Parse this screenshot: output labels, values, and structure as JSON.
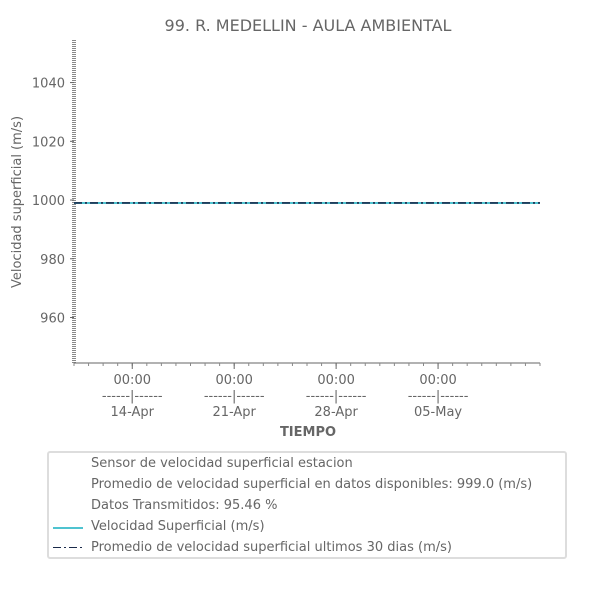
{
  "chart_data": {
    "type": "line",
    "title": "99. R. MEDELLIN - AULA AMBIENTAL",
    "xlabel": "TIEMPO",
    "ylabel": "Velocidad superficial (m/s)",
    "ylim": [
      944.5,
      1054.5
    ],
    "yticks": [
      960,
      980,
      1000,
      1020,
      1040
    ],
    "x_range_days": [
      "2024-04-10",
      "2024-05-12"
    ],
    "xticks": [
      {
        "date": "2024-04-14",
        "line1": "00:00",
        "line2": "------|------",
        "line3": "14-Apr"
      },
      {
        "date": "2024-04-21",
        "line1": "00:00",
        "line2": "------|------",
        "line3": "21-Apr"
      },
      {
        "date": "2024-04-28",
        "line1": "00:00",
        "line2": "------|------",
        "line3": "28-Apr"
      },
      {
        "date": "2024-05-05",
        "line1": "00:00",
        "line2": "------|------",
        "line3": "05-May"
      }
    ],
    "series": [
      {
        "name": "Velocidad Superficial (m/s)",
        "color": "#4fc3d0",
        "style": "solid",
        "x": [
          "2024-04-10",
          "2024-05-12"
        ],
        "values": [
          999.0,
          999.0
        ]
      },
      {
        "name": "Promedio de velocidad superficial ultimos 30 dias (m/s)",
        "color": "#1a2a4a",
        "style": "dashdot",
        "x": [
          "2024-04-10",
          "2024-05-12"
        ],
        "values": [
          999.0,
          999.0
        ]
      }
    ],
    "grid": false,
    "legend_position": "bottom"
  },
  "legend": {
    "info_lines": [
      "Sensor de velocidad superficial estacion",
      "Promedio de velocidad superficial en datos disponibles: 999.0 (m/s)",
      "Datos Transmitidos: 95.46 %"
    ]
  },
  "colors": {
    "text": "#666666",
    "axis": "#666666",
    "legend_border": "#dddddd"
  }
}
